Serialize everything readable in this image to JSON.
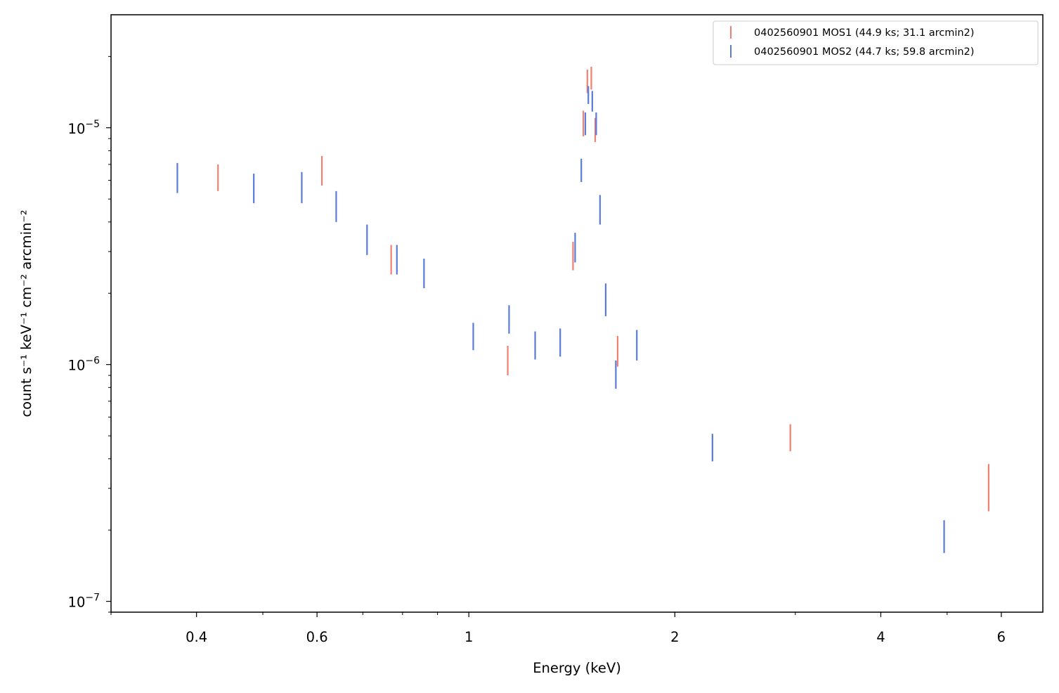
{
  "chart_data": {
    "type": "scatter",
    "xlabel": "Energy (keV)",
    "ylabel": "count s⁻¹ keV⁻¹ cm⁻² arcmin⁻²",
    "xscale": "log",
    "yscale": "log",
    "xlim": [
      0.3,
      6.9
    ],
    "ylim": [
      9e-08,
      3e-05
    ],
    "grid": false,
    "legend_position": "top-right",
    "x_ticks": [
      {
        "value": 0.4,
        "label": "0.4"
      },
      {
        "value": 0.6,
        "label": "0.6"
      },
      {
        "value": 1,
        "label": "1"
      },
      {
        "value": 2,
        "label": "2"
      },
      {
        "value": 4,
        "label": "4"
      },
      {
        "value": 6,
        "label": "6"
      }
    ],
    "y_ticks": [
      {
        "value": 1e-07,
        "base": "10",
        "exp": "−7"
      },
      {
        "value": 1e-06,
        "base": "10",
        "exp": "−6"
      },
      {
        "value": 1e-05,
        "base": "10",
        "exp": "−5"
      }
    ],
    "series": [
      {
        "name": "0402560901 MOS1 (44.9 ks; 31.1 arcmin2)",
        "color": "#f08070",
        "points": [
          {
            "x": 0.43,
            "y": 6.2e-06,
            "lo": 5.4e-06,
            "hi": 7e-06
          },
          {
            "x": 0.61,
            "y": 6.6e-06,
            "lo": 5.7e-06,
            "hi": 7.6e-06
          },
          {
            "x": 0.77,
            "y": 2.8e-06,
            "lo": 2.4e-06,
            "hi": 3.2e-06
          },
          {
            "x": 1.14,
            "y": 1.05e-06,
            "lo": 9e-07,
            "hi": 1.2e-06
          },
          {
            "x": 1.42,
            "y": 2.9e-06,
            "lo": 2.5e-06,
            "hi": 3.3e-06
          },
          {
            "x": 1.47,
            "y": 1.05e-05,
            "lo": 9.2e-06,
            "hi": 1.18e-05
          },
          {
            "x": 1.49,
            "y": 1.58e-05,
            "lo": 1.4e-05,
            "hi": 1.76e-05
          },
          {
            "x": 1.51,
            "y": 1.63e-05,
            "lo": 1.45e-05,
            "hi": 1.81e-05
          },
          {
            "x": 1.53,
            "y": 9.8e-06,
            "lo": 8.7e-06,
            "hi": 1.1e-05
          },
          {
            "x": 1.65,
            "y": 1.15e-06,
            "lo": 9.8e-07,
            "hi": 1.32e-06
          },
          {
            "x": 2.95,
            "y": 4.9e-07,
            "lo": 4.3e-07,
            "hi": 5.6e-07
          },
          {
            "x": 5.75,
            "y": 3.1e-07,
            "lo": 2.4e-07,
            "hi": 3.8e-07
          }
        ]
      },
      {
        "name": "0402560901 MOS2 (44.7 ks; 59.8 arcmin2)",
        "color": "#5b7bdb",
        "points": [
          {
            "x": 0.375,
            "y": 6.2e-06,
            "lo": 5.3e-06,
            "hi": 7.1e-06
          },
          {
            "x": 0.485,
            "y": 5.6e-06,
            "lo": 4.8e-06,
            "hi": 6.4e-06
          },
          {
            "x": 0.57,
            "y": 5.7e-06,
            "lo": 4.8e-06,
            "hi": 6.5e-06
          },
          {
            "x": 0.64,
            "y": 4.7e-06,
            "lo": 4e-06,
            "hi": 5.4e-06
          },
          {
            "x": 0.71,
            "y": 3.4e-06,
            "lo": 2.9e-06,
            "hi": 3.9e-06
          },
          {
            "x": 0.785,
            "y": 2.8e-06,
            "lo": 2.4e-06,
            "hi": 3.2e-06
          },
          {
            "x": 0.86,
            "y": 2.5e-06,
            "lo": 2.1e-06,
            "hi": 2.8e-06
          },
          {
            "x": 1.015,
            "y": 1.3e-06,
            "lo": 1.15e-06,
            "hi": 1.5e-06
          },
          {
            "x": 1.145,
            "y": 1.55e-06,
            "lo": 1.35e-06,
            "hi": 1.78e-06
          },
          {
            "x": 1.25,
            "y": 1.2e-06,
            "lo": 1.05e-06,
            "hi": 1.38e-06
          },
          {
            "x": 1.36,
            "y": 1.25e-06,
            "lo": 1.08e-06,
            "hi": 1.42e-06
          },
          {
            "x": 1.43,
            "y": 3.1e-06,
            "lo": 2.7e-06,
            "hi": 3.6e-06
          },
          {
            "x": 1.46,
            "y": 6.7e-06,
            "lo": 5.9e-06,
            "hi": 7.4e-06
          },
          {
            "x": 1.48,
            "y": 1.04e-05,
            "lo": 9.3e-06,
            "hi": 1.16e-05
          },
          {
            "x": 1.495,
            "y": 1.38e-05,
            "lo": 1.26e-05,
            "hi": 1.5e-05
          },
          {
            "x": 1.515,
            "y": 1.3e-05,
            "lo": 1.17e-05,
            "hi": 1.43e-05
          },
          {
            "x": 1.535,
            "y": 1.04e-05,
            "lo": 9.3e-06,
            "hi": 1.16e-05
          },
          {
            "x": 1.555,
            "y": 4.5e-06,
            "lo": 3.9e-06,
            "hi": 5.2e-06
          },
          {
            "x": 1.585,
            "y": 1.9e-06,
            "lo": 1.6e-06,
            "hi": 2.2e-06
          },
          {
            "x": 1.64,
            "y": 9.1e-07,
            "lo": 7.9e-07,
            "hi": 1.04e-06
          },
          {
            "x": 1.76,
            "y": 1.2e-06,
            "lo": 1.04e-06,
            "hi": 1.4e-06
          },
          {
            "x": 2.27,
            "y": 4.5e-07,
            "lo": 3.9e-07,
            "hi": 5.1e-07
          },
          {
            "x": 4.95,
            "y": 1.9e-07,
            "lo": 1.6e-07,
            "hi": 2.2e-07
          }
        ]
      }
    ]
  }
}
